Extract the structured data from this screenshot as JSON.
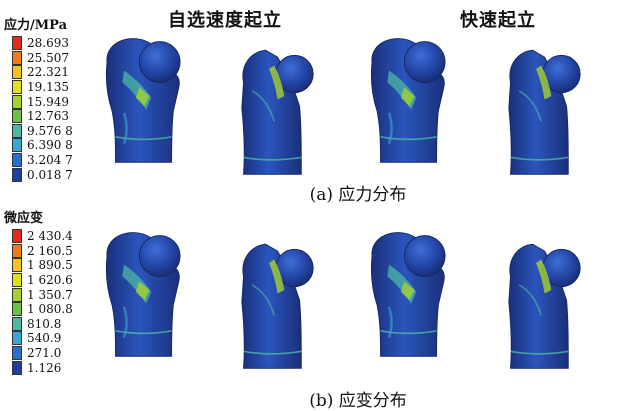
{
  "panel_titles": {
    "left": "自选速度起立",
    "right": "快速起立"
  },
  "stress_legend": {
    "title": "应力/MPa",
    "items": [
      {
        "value": "28.693",
        "color": "#e8281e"
      },
      {
        "value": "25.507",
        "color": "#f07a1e"
      },
      {
        "value": "22.321",
        "color": "#f5c21e"
      },
      {
        "value": "19.135",
        "color": "#e0e01e"
      },
      {
        "value": "15.949",
        "color": "#a6d230"
      },
      {
        "value": "12.763",
        "color": "#6cc04a"
      },
      {
        "value": "9.576 8",
        "color": "#4cb7a2"
      },
      {
        "value": "6.390 8",
        "color": "#3aa6d6"
      },
      {
        "value": "3.204 7",
        "color": "#2a6fd0"
      },
      {
        "value": "0.018 7",
        "color": "#1f3f9e"
      }
    ]
  },
  "strain_legend": {
    "title": "微应变",
    "items": [
      {
        "value": "2 430.4",
        "color": "#e8281e"
      },
      {
        "value": "2 160.5",
        "color": "#f07a1e"
      },
      {
        "value": "1 890.5",
        "color": "#f5c21e"
      },
      {
        "value": "1 620.6",
        "color": "#e0e01e"
      },
      {
        "value": "1 350.7",
        "color": "#a6d230"
      },
      {
        "value": "1 080.8",
        "color": "#6cc04a"
      },
      {
        "value": "810.8",
        "color": "#4cb7a2"
      },
      {
        "value": "540.9",
        "color": "#3aa6d6"
      },
      {
        "value": "271.0",
        "color": "#2a6fd0"
      },
      {
        "value": "1.126",
        "color": "#1f3f9e"
      }
    ]
  },
  "captions": {
    "a": "(a) 应力分布",
    "b": "(b) 应变分布"
  },
  "colors": {
    "bone_base": "#2447a8",
    "bone_dark": "#1a2f7a",
    "bone_highlight": "#3f6fd6",
    "stress_mid": "#4cb7a2",
    "stress_high": "#a6d230"
  }
}
